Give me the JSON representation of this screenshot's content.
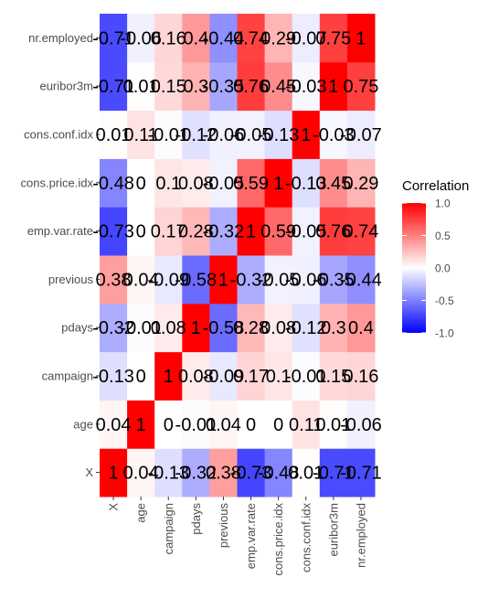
{
  "chart_data": {
    "type": "heatmap",
    "x_categories": [
      "X",
      "age",
      "campaign",
      "pdays",
      "previous",
      "emp.var.rate",
      "cons.price.idx",
      "cons.conf.idx",
      "euribor3m",
      "nr.employed"
    ],
    "y_categories": [
      "X",
      "age",
      "campaign",
      "pdays",
      "previous",
      "emp.var.rate",
      "cons.price.idx",
      "cons.conf.idx",
      "euribor3m",
      "nr.employed"
    ],
    "values": [
      [
        1,
        0.04,
        -0.13,
        -0.32,
        0.38,
        -0.73,
        -0.48,
        0.01,
        -0.71,
        -0.71
      ],
      [
        0.04,
        1,
        0,
        -0.01,
        0.04,
        0,
        0,
        0.11,
        0.01,
        -0.06
      ],
      [
        -0.13,
        0,
        1,
        0.08,
        -0.09,
        0.17,
        0.1,
        -0.01,
        0.15,
        0.16
      ],
      [
        -0.32,
        -0.01,
        0.08,
        1,
        -0.58,
        0.28,
        0.08,
        -0.12,
        0.3,
        0.4
      ],
      [
        0.38,
        0.04,
        -0.09,
        -0.58,
        1,
        -0.32,
        -0.05,
        -0.06,
        -0.35,
        -0.44
      ],
      [
        -0.73,
        0,
        0.17,
        0.28,
        -0.32,
        1,
        0.59,
        -0.05,
        0.76,
        0.74
      ],
      [
        -0.48,
        0,
        0.1,
        0.08,
        -0.05,
        0.59,
        1,
        -0.13,
        0.45,
        0.29
      ],
      [
        0.01,
        0.11,
        -0.01,
        -0.12,
        -0.06,
        -0.05,
        -0.13,
        1,
        -0.03,
        -0.07
      ],
      [
        -0.71,
        0.01,
        0.15,
        0.3,
        -0.35,
        0.76,
        0.45,
        -0.03,
        1,
        0.75
      ],
      [
        -0.71,
        -0.06,
        0.16,
        0.4,
        -0.44,
        0.74,
        0.29,
        -0.07,
        0.75,
        1
      ]
    ],
    "cell_labels": [
      [
        "1",
        "0.04",
        "-0.13",
        "-0.32",
        "0.38",
        "-0.73",
        "-0.48",
        "0.01",
        "-0.71",
        "-0.71"
      ],
      [
        "0.04",
        "1",
        "0",
        "-0.01",
        "0.04",
        "0",
        "0",
        "0.11",
        "0.01",
        "-0.06"
      ],
      [
        "-0.13",
        "0",
        "1",
        "0.08",
        "-0.09",
        "0.17",
        "0.1",
        "-0.01",
        "0.15",
        "0.16"
      ],
      [
        "-0.32",
        "-0.01",
        "0.08",
        "1",
        "-0.58",
        "0.28",
        "0.08",
        "-0.12",
        "0.3",
        "0.4"
      ],
      [
        "0.38",
        "0.04",
        "-0.09",
        "-0.58",
        "1",
        "-0.32",
        "-0.05",
        "-0.06",
        "-0.35",
        "-0.44"
      ],
      [
        "-0.73",
        "0",
        "0.17",
        "0.28",
        "-0.32",
        "1",
        "0.59",
        "-0.05",
        "0.76",
        "0.74"
      ],
      [
        "-0.48",
        "0",
        "0.1",
        "0.08",
        "-0.05",
        "0.59",
        "1",
        "-0.13",
        "0.45",
        "0.29"
      ],
      [
        "0.01",
        "0.11",
        "-0.01",
        "-0.12",
        "-0.06",
        "-0.05",
        "-0.13",
        "1",
        "-0.03",
        "-0.07"
      ],
      [
        "-0.71",
        "0.01",
        "0.15",
        "0.3",
        "-0.35",
        "0.76",
        "0.45",
        "-0.03",
        "1",
        "0.75"
      ],
      [
        "-0.71",
        "-0.06",
        "0.16",
        "0.4",
        "-0.44",
        "0.74",
        "0.29",
        "-0.07",
        "0.75",
        "1"
      ]
    ],
    "legend": {
      "title": "Correlation",
      "ticks": [
        1,
        0.5,
        0,
        -0.5,
        -1
      ],
      "tick_labels": [
        "1.0",
        "0.5",
        "0.0",
        "-0.5",
        "-1.0"
      ],
      "range": [
        -1,
        1
      ],
      "placement": "right"
    },
    "colors": {
      "low": "#0000ff",
      "mid": "#ffffff",
      "high": "#ff0000"
    },
    "title": "",
    "xlabel": "",
    "ylabel": "",
    "grid": false
  }
}
